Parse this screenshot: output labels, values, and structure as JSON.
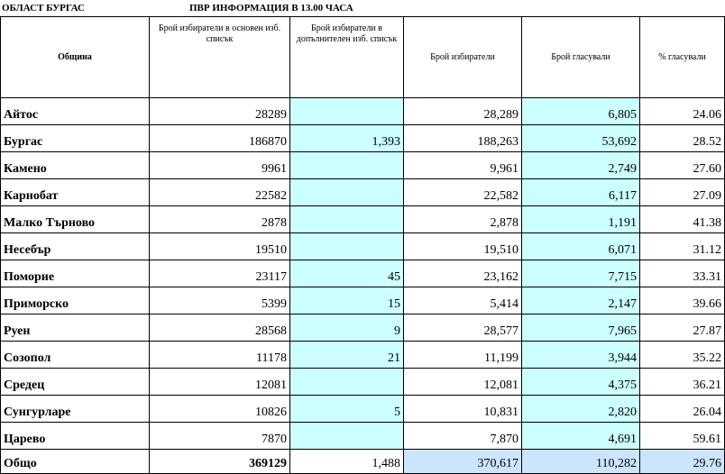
{
  "title": {
    "region": "ОБЛАСТ БУРГАС",
    "info": "ПВР ИНФОРМАЦИЯ В 13.00 ЧАСА"
  },
  "headers": {
    "municipality": "Община",
    "voters_main": "Брой избиратели в основен изб. списък",
    "voters_additional": "Брой избиратели в допълнителен изб. списък",
    "voters": "Брой избиратели",
    "voted": "Брой  гласували",
    "percent": "% гласували"
  },
  "rows": [
    {
      "name": "Айтос",
      "main": "28289",
      "additional": "",
      "voters": "28,289",
      "voted": "6,805",
      "percent": "24.06"
    },
    {
      "name": "Бургас",
      "main": "186870",
      "additional": "1,393",
      "voters": "188,263",
      "voted": "53,692",
      "percent": "28.52"
    },
    {
      "name": "Камено",
      "main": "9961",
      "additional": "",
      "voters": "9,961",
      "voted": "2,749",
      "percent": "27.60"
    },
    {
      "name": "Карнобат",
      "main": "22582",
      "additional": "",
      "voters": "22,582",
      "voted": "6,117",
      "percent": "27.09"
    },
    {
      "name": "Малко Търново",
      "main": "2878",
      "additional": "",
      "voters": "2,878",
      "voted": "1,191",
      "percent": "41.38"
    },
    {
      "name": "Несебър",
      "main": "19510",
      "additional": "",
      "voters": "19,510",
      "voted": "6,071",
      "percent": "31.12"
    },
    {
      "name": "Поморие",
      "main": "23117",
      "additional": "45",
      "voters": "23,162",
      "voted": "7,715",
      "percent": "33.31"
    },
    {
      "name": "Приморско",
      "main": "5399",
      "additional": "15",
      "voters": "5,414",
      "voted": "2,147",
      "percent": "39.66"
    },
    {
      "name": "Руен",
      "main": "28568",
      "additional": "9",
      "voters": "28,577",
      "voted": "7,965",
      "percent": "27.87"
    },
    {
      "name": "Созопол",
      "main": "11178",
      "additional": "21",
      "voters": "11,199",
      "voted": "3,944",
      "percent": "35.22"
    },
    {
      "name": "Средец",
      "main": "12081",
      "additional": "",
      "voters": "12,081",
      "voted": "4,375",
      "percent": "36.21"
    },
    {
      "name": "Сунгурларе",
      "main": "10826",
      "additional": "5",
      "voters": "10,831",
      "voted": "2,820",
      "percent": "26.04"
    },
    {
      "name": "Царево",
      "main": "7870",
      "additional": "",
      "voters": "7,870",
      "voted": "4,691",
      "percent": "59.61"
    }
  ],
  "total": {
    "name": "Общо",
    "main": "369129",
    "additional": "1,488",
    "voters": "370,617",
    "voted": "110,282",
    "percent": "29.76"
  },
  "colors": {
    "cyan_fill": "#ccffff",
    "blue_fill": "#cce5ff"
  }
}
